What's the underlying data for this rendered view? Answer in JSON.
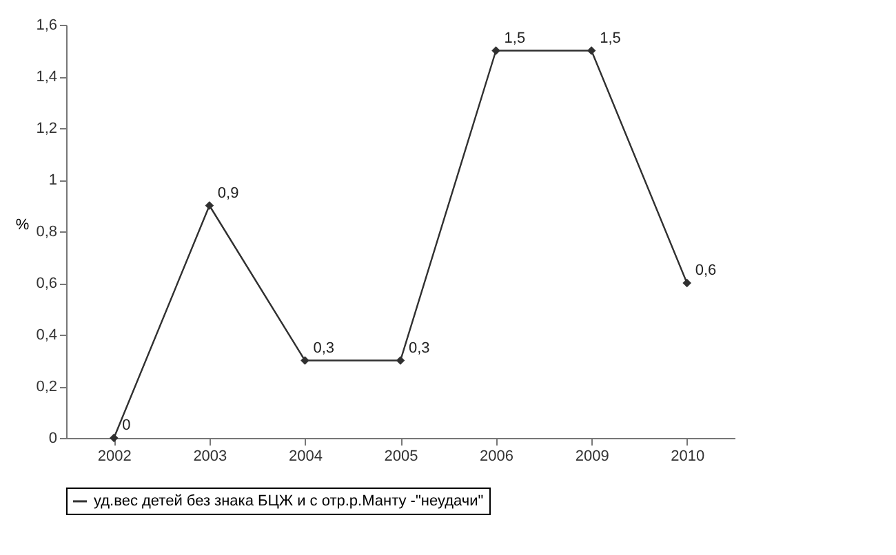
{
  "chart_data": {
    "type": "line",
    "ylabel": "%",
    "categories": [
      "2002",
      "2003",
      "2004",
      "2005",
      "2006",
      "2009",
      "2010"
    ],
    "series": [
      {
        "name": "уд.вес детей без знака БЦЖ и с отр.р.Манту -\"неудачи\"",
        "color": "#303030",
        "values": [
          0,
          0.9,
          0.3,
          0.3,
          1.5,
          1.5,
          0.6
        ],
        "value_labels": [
          "0",
          "0,9",
          "0,3",
          "0,3",
          "1,5",
          "1,5",
          "0,6"
        ]
      }
    ],
    "ylim": [
      0,
      1.6
    ],
    "yticks": [
      0,
      {
        "value": 0.2,
        "label": "0,2"
      },
      {
        "value": 0.4,
        "label": "0,4"
      },
      {
        "value": 0.6,
        "label": "0,6"
      },
      {
        "value": 0.8,
        "label": "0,8"
      },
      1,
      {
        "value": 1.2,
        "label": "1,2"
      },
      {
        "value": 1.4,
        "label": "1,4"
      },
      {
        "value": 1.6,
        "label": "1,6"
      }
    ],
    "grid": false,
    "legend": "bottom",
    "marker": "diamond",
    "line_style": "solid"
  }
}
